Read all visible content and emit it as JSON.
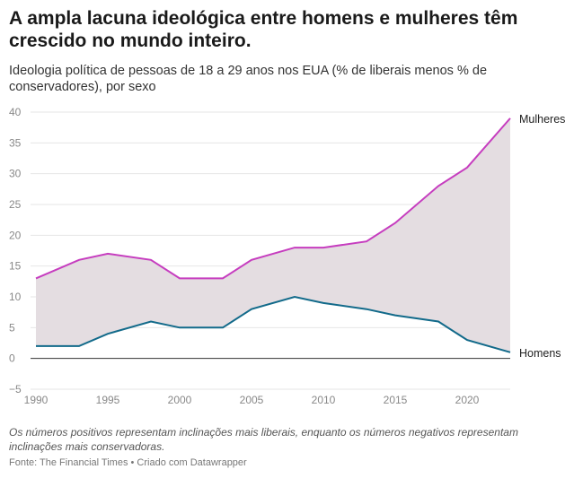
{
  "header": {
    "title": "A ampla lacuna ideológica entre homens e mulheres têm crescido no mundo inteiro.",
    "subtitle": "Ideologia política de pessoas de 18 a 29 anos nos EUA (% de liberais menos % de conservadores), por sexo"
  },
  "footer": {
    "note": "Os números positivos representam inclinações mais liberais, enquanto os números negativos representam inclinações mais conservadoras.",
    "source": "Fonte: The Financial Times • Criado com Datawrapper"
  },
  "colors": {
    "mulheres": "#c63dbf",
    "homens": "#126a8a",
    "fill": "#e4dde1",
    "grid": "#e6e6e6",
    "zero_line": "#333333"
  },
  "chart_data": {
    "type": "area",
    "title": "A ampla lacuna ideológica entre homens e mulheres têm crescido no mundo inteiro.",
    "subtitle": "Ideologia política de pessoas de 18 a 29 anos nos EUA (% de liberais menos % de conservadores), por sexo",
    "xlabel": "",
    "ylabel": "",
    "xlim": [
      1990,
      2023
    ],
    "ylim": [
      -5,
      40
    ],
    "x_ticks": [
      1990,
      1995,
      2000,
      2005,
      2010,
      2015,
      2020
    ],
    "y_ticks": [
      -5,
      0,
      5,
      10,
      15,
      20,
      25,
      30,
      35,
      40
    ],
    "y_tick_labels": [
      "−5",
      "0",
      "5",
      "10",
      "15",
      "20",
      "25",
      "30",
      "35",
      "40"
    ],
    "grid": true,
    "x": [
      1990,
      1993,
      1995,
      1998,
      2000,
      2003,
      2005,
      2008,
      2010,
      2013,
      2015,
      2018,
      2020,
      2023
    ],
    "series": [
      {
        "name": "Mulheres",
        "values": [
          13,
          16,
          17,
          16,
          13,
          13,
          16,
          18,
          18,
          19,
          22,
          28,
          31,
          39
        ]
      },
      {
        "name": "Homens",
        "values": [
          2,
          2,
          4,
          6,
          5,
          5,
          8,
          10,
          9,
          8,
          7,
          6,
          3,
          1
        ]
      }
    ]
  }
}
